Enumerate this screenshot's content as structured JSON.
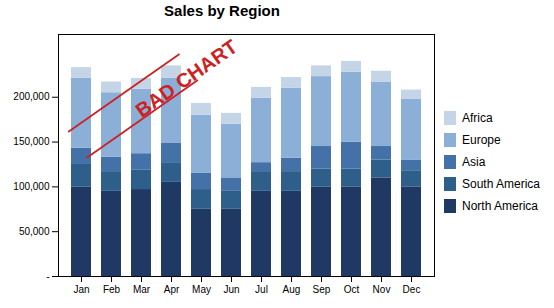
{
  "chart_data": {
    "type": "bar",
    "stacked": true,
    "title": "Sales by Region",
    "categories": [
      "Jan",
      "Feb",
      "Mar",
      "Apr",
      "May",
      "Jun",
      "Jul",
      "Aug",
      "Sep",
      "Oct",
      "Nov",
      "Dec"
    ],
    "series": [
      {
        "name": "North America",
        "color": "#1F3864",
        "values": [
          100000,
          95000,
          97000,
          105000,
          75000,
          75000,
          95000,
          95000,
          100000,
          100000,
          110000,
          100000
        ]
      },
      {
        "name": "South America",
        "color": "#2E5F8A",
        "values": [
          25000,
          22000,
          22000,
          22000,
          22000,
          20000,
          22000,
          22000,
          20000,
          20000,
          20000,
          18000
        ]
      },
      {
        "name": "Asia",
        "color": "#4472A8",
        "values": [
          18000,
          16000,
          18000,
          22000,
          18000,
          15000,
          10000,
          15000,
          25000,
          30000,
          15000,
          12000
        ]
      },
      {
        "name": "Europe",
        "color": "#8BAFD6",
        "values": [
          78000,
          72000,
          72000,
          72000,
          65000,
          60000,
          72000,
          78000,
          78000,
          78000,
          72000,
          68000
        ]
      },
      {
        "name": "Africa",
        "color": "#C5D5E8",
        "values": [
          12000,
          12000,
          12000,
          14000,
          13000,
          12000,
          12000,
          12000,
          12000,
          12000,
          12000,
          10000
        ]
      }
    ],
    "ylim": [
      0,
      270000
    ],
    "yticks": [
      {
        "value": 0,
        "label": "-"
      },
      {
        "value": 50000,
        "label": "50,000"
      },
      {
        "value": 100000,
        "label": "100,000"
      },
      {
        "value": 150000,
        "label": "150,000"
      },
      {
        "value": 200000,
        "label": "200,000"
      }
    ],
    "grid": false,
    "legend": "right",
    "annotations": [
      {
        "text": "BAD CHART",
        "color": "#CC2222"
      }
    ]
  }
}
